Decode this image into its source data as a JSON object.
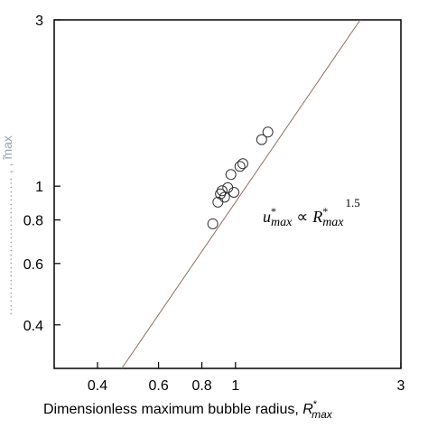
{
  "chart_data": {
    "type": "scatter",
    "scale": "log-log",
    "xlim": [
      0.3,
      3
    ],
    "ylim": [
      0.3,
      3
    ],
    "x_ticks": [
      {
        "value": 0.4,
        "label": "0.4"
      },
      {
        "value": 0.6,
        "label": "0.6"
      },
      {
        "value": 0.8,
        "label": "0.8"
      },
      {
        "value": 1,
        "label": "1"
      },
      {
        "value": 3,
        "label": "3"
      }
    ],
    "y_ticks": [
      {
        "value": 0.4,
        "label": "0.4"
      },
      {
        "value": 0.6,
        "label": "0.6"
      },
      {
        "value": 0.8,
        "label": "0.8"
      },
      {
        "value": 1,
        "label": "1"
      },
      {
        "value": 3,
        "label": "3"
      }
    ],
    "xlabel_text": "Dimensionless maximum bubble radius, ",
    "xlabel_symbol": "R",
    "xlabel_superscript": "*",
    "xlabel_subscript": "max",
    "ylabel_fragment": "…………………………… ,  , ̃max",
    "points": [
      {
        "x": 0.86,
        "y": 0.78
      },
      {
        "x": 0.89,
        "y": 0.9
      },
      {
        "x": 0.905,
        "y": 0.95
      },
      {
        "x": 0.915,
        "y": 0.97
      },
      {
        "x": 0.93,
        "y": 0.93
      },
      {
        "x": 0.95,
        "y": 0.99
      },
      {
        "x": 0.97,
        "y": 1.08
      },
      {
        "x": 0.99,
        "y": 0.96
      },
      {
        "x": 1.03,
        "y": 1.14
      },
      {
        "x": 1.05,
        "y": 1.16
      },
      {
        "x": 1.19,
        "y": 1.36
      },
      {
        "x": 1.24,
        "y": 1.43
      }
    ],
    "fit_line": {
      "exponent": 1.5,
      "points": [
        {
          "x": 0.47,
          "y": 0.3
        },
        {
          "x": 2.29,
          "y": 3.0
        }
      ]
    },
    "annotation": {
      "u": "u",
      "u_sup": "*",
      "u_sub": "max",
      "prop": "∝",
      "r": "R",
      "r_sup": "*",
      "r_sub": "max",
      "exponent": "1.5"
    },
    "grid": false,
    "colors": {
      "line": "#8a6e66",
      "marker": "#333333",
      "axis": "#000000"
    }
  }
}
